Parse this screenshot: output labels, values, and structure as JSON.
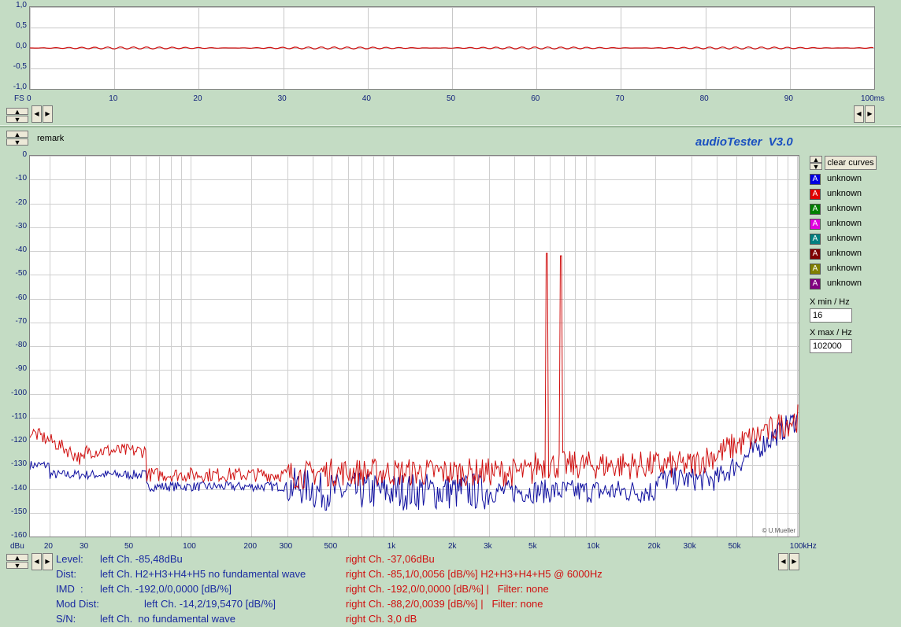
{
  "app_title": "audioTester  V3.0",
  "remark_label": "remark",
  "copyright": "© U.Mueller",
  "clear_curves_label": "clear curves",
  "time_plot": {
    "y_unit": "FS",
    "y_ticks": [
      "1,0",
      "0,5",
      "0,0",
      "-0,5",
      "-1,0"
    ],
    "x_ticks": [
      "0",
      "10",
      "20",
      "30",
      "40",
      "50",
      "60",
      "70",
      "80",
      "90",
      "100ms"
    ]
  },
  "spectrum_plot": {
    "y_unit": "dBu",
    "y_ticks": [
      "0",
      "-10",
      "-20",
      "-30",
      "-40",
      "-50",
      "-60",
      "-70",
      "-80",
      "-90",
      "-100",
      "-110",
      "-120",
      "-130",
      "-140",
      "-150",
      "-160"
    ],
    "x_ticks": [
      "20",
      "30",
      "50",
      "100",
      "200",
      "300",
      "500",
      "1k",
      "2k",
      "3k",
      "5k",
      "10k",
      "20k",
      "30k",
      "50k",
      "100kHz"
    ]
  },
  "legend": [
    {
      "label": "unknown",
      "color": "#0000e0",
      "glyph": "A"
    },
    {
      "label": "unknown",
      "color": "#e00000",
      "glyph": "A"
    },
    {
      "label": "unknown",
      "color": "#008000",
      "glyph": "A"
    },
    {
      "label": "unknown",
      "color": "#e000e0",
      "glyph": "A"
    },
    {
      "label": "unknown",
      "color": "#008080",
      "glyph": "A"
    },
    {
      "label": "unknown",
      "color": "#800000",
      "glyph": "A"
    },
    {
      "label": "unknown",
      "color": "#808000",
      "glyph": "A"
    },
    {
      "label": "unknown",
      "color": "#800080",
      "glyph": "A"
    }
  ],
  "xmin": {
    "label": "X min / Hz",
    "value": "16"
  },
  "xmax": {
    "label": "X max / Hz",
    "value": "102000"
  },
  "stats": {
    "level": {
      "name": "Level:",
      "left": "left Ch. -85,48dBu",
      "right": "right Ch. -37,06dBu"
    },
    "dist": {
      "name": "Dist:",
      "left": "left Ch. H2+H3+H4+H5 no fundamental wave",
      "right": "right Ch. -85,1/0,0056 [dB/%] H2+H3+H4+H5 @ 6000Hz"
    },
    "imd": {
      "name": "IMD  :",
      "left": "left Ch. -192,0/0,0000 [dB/%]",
      "right": "right Ch. -192,0/0,0000 [dB/%] |   Filter: none"
    },
    "moddist": {
      "name": "Mod Dist:",
      "left": "left Ch. -14,2/19,5470 [dB/%]",
      "right": "right Ch. -88,2/0,0039 [dB/%] |   Filter: none"
    },
    "sn": {
      "name": "S/N:",
      "left": "left Ch.  no fundamental wave",
      "right": "right Ch. 3,0 dB"
    }
  }
}
